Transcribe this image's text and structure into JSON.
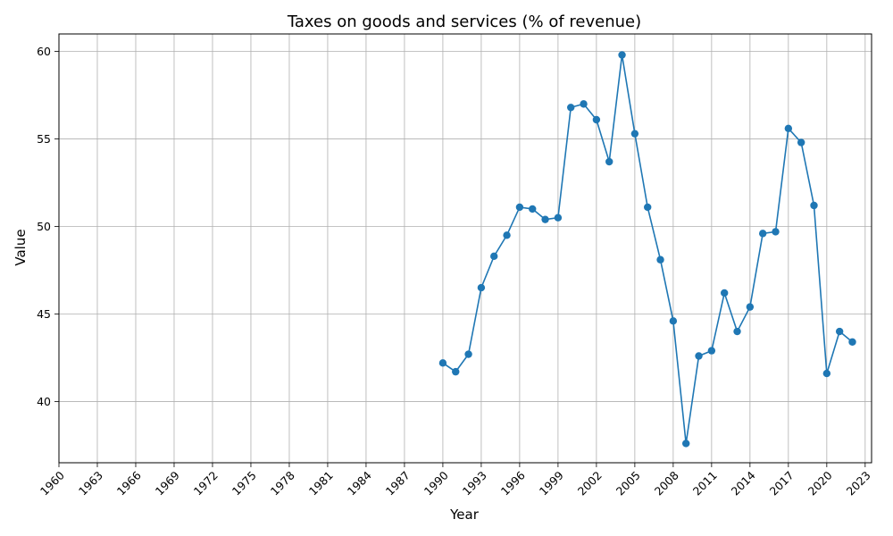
{
  "chart_data": {
    "type": "line",
    "title": "Taxes on goods and services (% of revenue)",
    "xlabel": "Year",
    "ylabel": "Value",
    "xlim": [
      1960,
      2023.5
    ],
    "ylim": [
      36.5,
      61
    ],
    "x_ticks": [
      1960,
      1963,
      1966,
      1969,
      1972,
      1975,
      1978,
      1981,
      1984,
      1987,
      1990,
      1993,
      1996,
      1999,
      2002,
      2005,
      2008,
      2011,
      2014,
      2017,
      2020,
      2023
    ],
    "y_ticks": [
      40,
      45,
      50,
      55,
      60
    ],
    "grid": true,
    "color": "#1f77b4",
    "series": [
      {
        "x": [
          1990,
          1991,
          1992,
          1993,
          1994,
          1995,
          1996,
          1997,
          1998,
          1999,
          2000,
          2001,
          2002,
          2003,
          2004,
          2005,
          2006,
          2007,
          2008,
          2009,
          2010,
          2011,
          2012,
          2013,
          2014,
          2015,
          2016,
          2017,
          2018,
          2019,
          2020,
          2021,
          2022
        ],
        "values": [
          42.2,
          41.7,
          42.7,
          46.5,
          48.3,
          49.5,
          51.1,
          51.0,
          50.4,
          50.5,
          56.8,
          57.0,
          56.1,
          53.7,
          59.8,
          55.3,
          51.1,
          48.1,
          44.6,
          37.6,
          42.6,
          42.9,
          46.2,
          44.0,
          45.4,
          49.6,
          49.7,
          55.6,
          54.8,
          51.2,
          41.6,
          44.0,
          43.4
        ]
      }
    ]
  }
}
